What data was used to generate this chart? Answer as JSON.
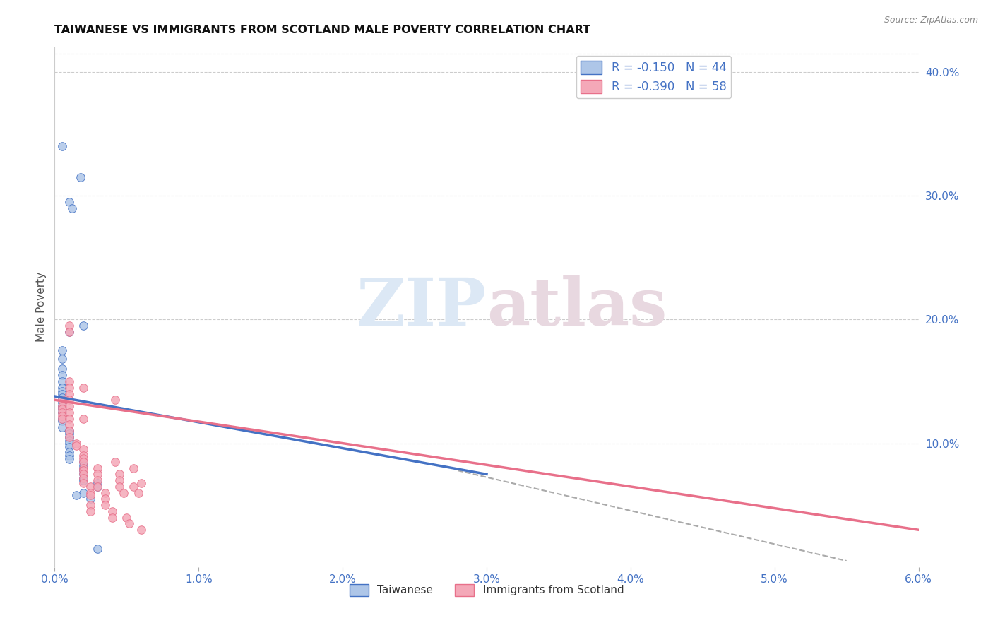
{
  "title": "TAIWANESE VS IMMIGRANTS FROM SCOTLAND MALE POVERTY CORRELATION CHART",
  "source": "Source: ZipAtlas.com",
  "ylabel": "Male Poverty",
  "legend_label1": "Taiwanese",
  "legend_label2": "Immigrants from Scotland",
  "taiwan_color": "#aec6e8",
  "scotland_color": "#f4a8b8",
  "taiwan_line_color": "#4472c4",
  "scotland_line_color": "#e8708a",
  "taiwan_scatter": [
    [
      0.05,
      34.0
    ],
    [
      0.1,
      29.5
    ],
    [
      0.12,
      29.0
    ],
    [
      0.18,
      31.5
    ],
    [
      0.2,
      19.5
    ],
    [
      0.1,
      19.0
    ],
    [
      0.05,
      17.5
    ],
    [
      0.05,
      16.8
    ],
    [
      0.05,
      16.0
    ],
    [
      0.05,
      15.5
    ],
    [
      0.05,
      15.0
    ],
    [
      0.05,
      14.5
    ],
    [
      0.05,
      14.2
    ],
    [
      0.05,
      14.0
    ],
    [
      0.05,
      13.7
    ],
    [
      0.05,
      13.3
    ],
    [
      0.05,
      13.0
    ],
    [
      0.05,
      12.8
    ],
    [
      0.05,
      12.5
    ],
    [
      0.05,
      12.0
    ],
    [
      0.05,
      11.8
    ],
    [
      0.05,
      11.3
    ],
    [
      0.1,
      11.0
    ],
    [
      0.1,
      10.8
    ],
    [
      0.1,
      10.5
    ],
    [
      0.1,
      10.2
    ],
    [
      0.1,
      10.0
    ],
    [
      0.1,
      9.7
    ],
    [
      0.1,
      9.3
    ],
    [
      0.1,
      9.0
    ],
    [
      0.1,
      8.7
    ],
    [
      0.2,
      8.5
    ],
    [
      0.2,
      8.2
    ],
    [
      0.2,
      8.0
    ],
    [
      0.2,
      7.8
    ],
    [
      0.2,
      7.5
    ],
    [
      0.2,
      7.2
    ],
    [
      0.2,
      7.0
    ],
    [
      0.3,
      6.8
    ],
    [
      0.3,
      6.5
    ],
    [
      0.3,
      1.5
    ],
    [
      0.2,
      6.0
    ],
    [
      0.15,
      5.8
    ],
    [
      0.25,
      5.5
    ]
  ],
  "scotland_scatter": [
    [
      0.05,
      13.5
    ],
    [
      0.05,
      13.0
    ],
    [
      0.05,
      12.8
    ],
    [
      0.05,
      12.5
    ],
    [
      0.05,
      12.2
    ],
    [
      0.05,
      12.0
    ],
    [
      0.1,
      19.5
    ],
    [
      0.1,
      19.0
    ],
    [
      0.1,
      15.0
    ],
    [
      0.1,
      14.5
    ],
    [
      0.1,
      14.0
    ],
    [
      0.1,
      13.5
    ],
    [
      0.1,
      13.0
    ],
    [
      0.1,
      12.5
    ],
    [
      0.1,
      12.0
    ],
    [
      0.1,
      11.5
    ],
    [
      0.1,
      11.0
    ],
    [
      0.1,
      10.5
    ],
    [
      0.15,
      10.0
    ],
    [
      0.15,
      9.8
    ],
    [
      0.2,
      14.5
    ],
    [
      0.2,
      12.0
    ],
    [
      0.2,
      9.5
    ],
    [
      0.2,
      9.0
    ],
    [
      0.2,
      8.8
    ],
    [
      0.2,
      8.5
    ],
    [
      0.2,
      8.0
    ],
    [
      0.2,
      7.8
    ],
    [
      0.2,
      7.5
    ],
    [
      0.2,
      7.2
    ],
    [
      0.2,
      6.8
    ],
    [
      0.25,
      6.5
    ],
    [
      0.25,
      6.0
    ],
    [
      0.25,
      5.8
    ],
    [
      0.25,
      5.0
    ],
    [
      0.25,
      4.5
    ],
    [
      0.3,
      8.0
    ],
    [
      0.3,
      7.5
    ],
    [
      0.3,
      7.0
    ],
    [
      0.3,
      6.5
    ],
    [
      0.35,
      6.0
    ],
    [
      0.35,
      5.5
    ],
    [
      0.35,
      5.0
    ],
    [
      0.4,
      4.5
    ],
    [
      0.4,
      4.0
    ],
    [
      0.42,
      13.5
    ],
    [
      0.42,
      8.5
    ],
    [
      0.45,
      7.5
    ],
    [
      0.45,
      7.0
    ],
    [
      0.45,
      6.5
    ],
    [
      0.48,
      6.0
    ],
    [
      0.5,
      4.0
    ],
    [
      0.52,
      3.5
    ],
    [
      0.55,
      8.0
    ],
    [
      0.55,
      6.5
    ],
    [
      0.58,
      6.0
    ],
    [
      0.6,
      6.8
    ],
    [
      0.6,
      3.0
    ]
  ],
  "xlim": [
    0.0,
    6.0
  ],
  "ylim": [
    0.0,
    42.0
  ],
  "xticks": [
    0.0,
    1.0,
    2.0,
    3.0,
    4.0,
    5.0,
    6.0
  ],
  "yticks_right": [
    10.0,
    20.0,
    30.0,
    40.0
  ],
  "background_color": "#ffffff",
  "watermark_zip": "ZIP",
  "watermark_atlas": "atlas",
  "taiwan_R": -0.15,
  "taiwan_N": 44,
  "scotland_R": -0.39,
  "scotland_N": 58,
  "taiwan_line_x": [
    0.0,
    3.0
  ],
  "taiwan_line_y": [
    13.8,
    7.5
  ],
  "scotland_line_x": [
    0.0,
    6.0
  ],
  "scotland_line_y": [
    13.5,
    3.0
  ],
  "dash_line_x": [
    2.8,
    5.5
  ],
  "dash_line_y": [
    7.8,
    0.5
  ]
}
